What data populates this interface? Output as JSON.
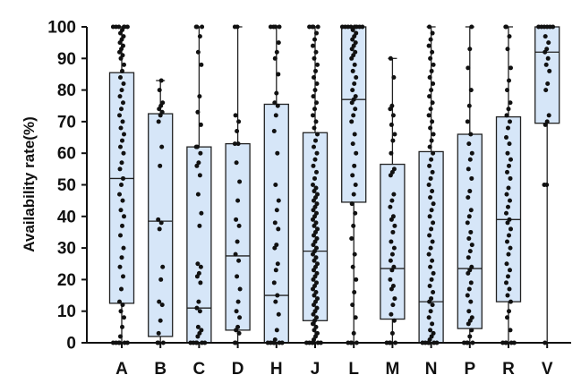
{
  "chart_data": {
    "type": "box",
    "title": "",
    "xlabel": "",
    "ylabel": "Availability rate(%)",
    "ylim": [
      0,
      100
    ],
    "yticks": [
      0,
      10,
      20,
      30,
      40,
      50,
      60,
      70,
      80,
      90,
      100
    ],
    "grid": false,
    "box_fill": "#d6e6f8",
    "box_stroke": "#222222",
    "point_color": "#111111",
    "categories": [
      "A",
      "B",
      "C",
      "D",
      "H",
      "J",
      "L",
      "M",
      "N",
      "P",
      "R",
      "V"
    ],
    "boxes": [
      {
        "category": "A",
        "min": 0,
        "q1": 12.5,
        "median": 52,
        "q3": 85.5,
        "max": 100
      },
      {
        "category": "B",
        "min": 0,
        "q1": 2,
        "median": 38.5,
        "q3": 72.5,
        "max": 83
      },
      {
        "category": "C",
        "min": 0,
        "q1": 0,
        "median": 11,
        "q3": 62,
        "max": 100
      },
      {
        "category": "D",
        "min": 0,
        "q1": 4,
        "median": 27.5,
        "q3": 63,
        "max": 100
      },
      {
        "category": "H",
        "min": 0,
        "q1": 0,
        "median": 15,
        "q3": 75.5,
        "max": 100
      },
      {
        "category": "J",
        "min": 0,
        "q1": 7,
        "median": 29,
        "q3": 66.5,
        "max": 100
      },
      {
        "category": "L",
        "min": 0,
        "q1": 44.5,
        "median": 77,
        "q3": 100,
        "max": 100
      },
      {
        "category": "M",
        "min": 0,
        "q1": 7.5,
        "median": 23.5,
        "q3": 56.5,
        "max": 90
      },
      {
        "category": "N",
        "min": 0,
        "q1": 0,
        "median": 13,
        "q3": 60.5,
        "max": 100
      },
      {
        "category": "P",
        "min": 0,
        "q1": 4.5,
        "median": 23.5,
        "q3": 66,
        "max": 100
      },
      {
        "category": "R",
        "min": 0,
        "q1": 13,
        "median": 39,
        "q3": 71.5,
        "max": 100
      },
      {
        "category": "V",
        "min": 0,
        "q1": 69.5,
        "median": 92,
        "q3": 100,
        "max": 100
      }
    ],
    "points": {
      "A": [
        0,
        0,
        0,
        0,
        0,
        0,
        2,
        5,
        8,
        10,
        12,
        13,
        17,
        21,
        24,
        27,
        30,
        34,
        37,
        40,
        42,
        45,
        47,
        50,
        52,
        55,
        57,
        60,
        62,
        64,
        66,
        68,
        70,
        72,
        74,
        76,
        78,
        80,
        82,
        84,
        86,
        88,
        90,
        91,
        92,
        93,
        94,
        95,
        96,
        97,
        98,
        99,
        100,
        100,
        100,
        100,
        100,
        100
      ],
      "B": [
        0,
        0,
        0,
        3,
        7,
        12,
        13,
        20,
        24,
        36,
        38,
        39,
        56,
        62,
        70,
        72,
        73,
        74,
        75,
        76,
        80,
        83
      ],
      "C": [
        0,
        0,
        0,
        0,
        0,
        0,
        2,
        3,
        4,
        5,
        10,
        11,
        13,
        19,
        21,
        22,
        24,
        25,
        37,
        41,
        47,
        53,
        56,
        57,
        60,
        62,
        62,
        69,
        73,
        78,
        88,
        92,
        97,
        100,
        100,
        100
      ],
      "D": [
        0,
        0,
        3,
        4,
        5,
        8,
        10,
        13,
        17,
        21,
        26,
        28,
        32,
        37,
        39,
        45,
        51,
        57,
        63,
        63,
        67,
        70,
        72,
        100,
        100
      ],
      "H": [
        0,
        0,
        0,
        0,
        0,
        0,
        1,
        4,
        9,
        13,
        15,
        19,
        23,
        25,
        30,
        31,
        36,
        38,
        42,
        45,
        50,
        60,
        67,
        72,
        75,
        76,
        79,
        85,
        90,
        92,
        95,
        100,
        100,
        100,
        100
      ],
      "J": [
        0,
        0,
        0,
        0,
        0,
        0,
        1,
        2,
        3,
        4,
        5,
        6,
        7,
        8,
        9,
        10,
        11,
        12,
        13,
        14,
        15,
        16,
        17,
        18,
        19,
        20,
        21,
        22,
        23,
        24,
        25,
        26,
        27,
        28,
        29,
        30,
        31,
        32,
        33,
        34,
        35,
        36,
        37,
        38,
        39,
        40,
        41,
        42,
        43,
        44,
        45,
        46,
        47,
        48,
        49,
        50,
        52,
        54,
        56,
        58,
        60,
        62,
        64,
        66,
        68,
        70,
        72,
        74,
        76,
        78,
        80,
        82,
        84,
        86,
        88,
        90,
        92,
        94,
        96,
        98,
        100,
        100,
        100,
        100
      ],
      "L": [
        0,
        0,
        0,
        0,
        3,
        8,
        12,
        16,
        20,
        24,
        28,
        33,
        37,
        41,
        44,
        47,
        50,
        53,
        56,
        60,
        63,
        66,
        70,
        72,
        74,
        76,
        77,
        78,
        80,
        82,
        84,
        86,
        88,
        90,
        91,
        92,
        93,
        94,
        95,
        96,
        97,
        98,
        99,
        100,
        100,
        100,
        100,
        100,
        100,
        100,
        100
      ],
      "M": [
        0,
        0,
        0,
        0,
        3,
        7,
        9,
        12,
        14,
        17,
        18,
        20,
        23,
        24,
        26,
        28,
        30,
        32,
        35,
        37,
        39,
        40,
        43,
        45,
        47,
        53,
        54,
        55,
        60,
        64,
        66,
        69,
        72,
        74,
        75,
        84,
        90
      ],
      "N": [
        0,
        0,
        0,
        0,
        0,
        0,
        1,
        2,
        3,
        4,
        6,
        8,
        10,
        12,
        13,
        14,
        16,
        18,
        20,
        22,
        24,
        26,
        28,
        30,
        32,
        34,
        36,
        38,
        40,
        42,
        44,
        46,
        48,
        50,
        52,
        54,
        56,
        58,
        60,
        62,
        64,
        66,
        68,
        70,
        72,
        74,
        76,
        78,
        80,
        82,
        84,
        86,
        88,
        90,
        92,
        94,
        96,
        98,
        100
      ],
      "P": [
        0,
        0,
        0,
        0,
        2,
        4,
        6,
        7,
        8,
        10,
        13,
        15,
        17,
        19,
        22,
        23,
        24,
        27,
        29,
        31,
        33,
        35,
        38,
        40,
        42,
        46,
        48,
        52,
        55,
        58,
        60,
        63,
        66,
        70,
        75,
        80,
        87,
        93,
        100
      ],
      "R": [
        0,
        0,
        0,
        0,
        0,
        4,
        8,
        10,
        13,
        15,
        17,
        19,
        21,
        23,
        25,
        28,
        30,
        32,
        34,
        36,
        38,
        39,
        41,
        43,
        45,
        47,
        49,
        52,
        54,
        56,
        58,
        60,
        63,
        65,
        68,
        70,
        72,
        74,
        76,
        80,
        83,
        87,
        93,
        97,
        100,
        100
      ],
      "V": [
        0,
        50,
        50,
        69,
        70,
        72,
        80,
        82,
        86,
        88,
        90,
        92,
        93,
        95,
        97,
        100,
        100,
        100,
        100,
        100,
        100
      ]
    }
  }
}
